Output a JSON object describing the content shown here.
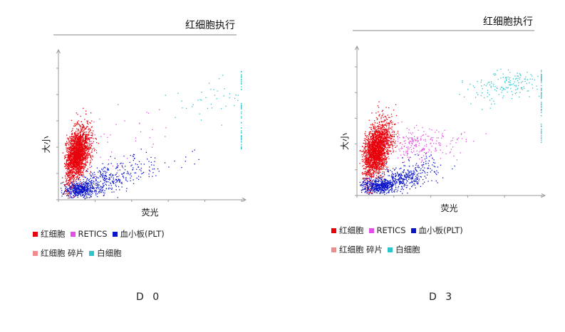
{
  "colors": {
    "rbc": "#e8000b",
    "retics": "#e64ce6",
    "plt": "#0a14c8",
    "fragment": "#f28b8b",
    "wbc": "#2cc5cc",
    "axis": "#9a9a9a"
  },
  "chart_data": [
    {
      "type": "scatter",
      "title": "红细胞执行",
      "xlabel": "荧光",
      "ylabel": "大小",
      "xlim": [
        0,
        100
      ],
      "ylim": [
        0,
        100
      ],
      "caption": "D 0",
      "legend": [
        {
          "key": "rbc",
          "label": "红细胞"
        },
        {
          "key": "retics",
          "label": "RETICS"
        },
        {
          "key": "plt",
          "label": "血小板(PLT)"
        },
        {
          "key": "fragment",
          "label": "红细胞 碎片"
        },
        {
          "key": "wbc",
          "label": "白细胞"
        }
      ],
      "series": [
        {
          "key": "rbc",
          "clusters": [
            {
              "cx": 10,
              "cy": 34,
              "sx": 2.5,
              "sy": 8,
              "n": 1400
            },
            {
              "cx": 13,
              "cy": 44,
              "sx": 3,
              "sy": 9,
              "n": 500
            },
            {
              "cx": 6,
              "cy": 22,
              "sx": 1.5,
              "sy": 10,
              "n": 250
            }
          ]
        },
        {
          "key": "retics",
          "clusters": [
            {
              "cx": 26,
              "cy": 42,
              "sx": 6,
              "sy": 9,
              "n": 22
            },
            {
              "cx": 48,
              "cy": 55,
              "sx": 10,
              "sy": 12,
              "n": 18
            }
          ]
        },
        {
          "key": "plt",
          "clusters": [
            {
              "cx": 12,
              "cy": 8,
              "sx": 5,
              "sy": 3,
              "n": 520
            },
            {
              "cx": 26,
              "cy": 16,
              "sx": 7,
              "sy": 4.5,
              "n": 220
            },
            {
              "cx": 42,
              "cy": 24,
              "sx": 8,
              "sy": 5,
              "n": 70
            },
            {
              "cx": 62,
              "cy": 30,
              "sx": 8,
              "sy": 5,
              "n": 14
            }
          ]
        },
        {
          "key": "wbc",
          "clusters": [
            {
              "cx": 86,
              "cy": 78,
              "sx": 8,
              "sy": 8,
              "n": 30
            },
            {
              "cx": 69,
              "cy": 71,
              "sx": 6,
              "sy": 8,
              "n": 8
            }
          ],
          "line": {
            "x": 100,
            "y0": 36,
            "y1": 98,
            "n": 55
          }
        }
      ]
    },
    {
      "type": "scatter",
      "title": "红细胞执行",
      "xlabel": "荧光",
      "ylabel": "大小",
      "xlim": [
        0,
        100
      ],
      "ylim": [
        0,
        100
      ],
      "caption": "D 3",
      "legend": [
        {
          "key": "rbc",
          "label": "红细胞"
        },
        {
          "key": "retics",
          "label": "RETICS"
        },
        {
          "key": "plt",
          "label": "血小板(PLT)"
        },
        {
          "key": "fragment",
          "label": "红细胞 碎片"
        },
        {
          "key": "wbc",
          "label": "白细胞"
        }
      ],
      "series": [
        {
          "key": "rbc",
          "clusters": [
            {
              "cx": 10,
              "cy": 34,
              "sx": 2.8,
              "sy": 8,
              "n": 1500
            },
            {
              "cx": 14,
              "cy": 46,
              "sx": 3.2,
              "sy": 9,
              "n": 550
            },
            {
              "cx": 6,
              "cy": 22,
              "sx": 1.5,
              "sy": 10,
              "n": 250
            }
          ]
        },
        {
          "key": "retics",
          "clusters": [
            {
              "cx": 29,
              "cy": 38,
              "sx": 6,
              "sy": 6,
              "n": 140
            },
            {
              "cx": 42,
              "cy": 42,
              "sx": 9,
              "sy": 6,
              "n": 90
            }
          ]
        },
        {
          "key": "plt",
          "clusters": [
            {
              "cx": 12,
              "cy": 8,
              "sx": 5,
              "sy": 3,
              "n": 560
            },
            {
              "cx": 24,
              "cy": 14,
              "sx": 6,
              "sy": 4,
              "n": 260
            },
            {
              "cx": 36,
              "cy": 22,
              "sx": 6,
              "sy": 5,
              "n": 90
            }
          ]
        },
        {
          "key": "wbc",
          "clusters": [
            {
              "cx": 84,
              "cy": 88,
              "sx": 9,
              "sy": 5,
              "n": 140
            },
            {
              "cx": 68,
              "cy": 80,
              "sx": 6,
              "sy": 5,
              "n": 30
            }
          ],
          "line": {
            "x": 100,
            "y0": 40,
            "y1": 98,
            "n": 60
          }
        }
      ]
    }
  ]
}
